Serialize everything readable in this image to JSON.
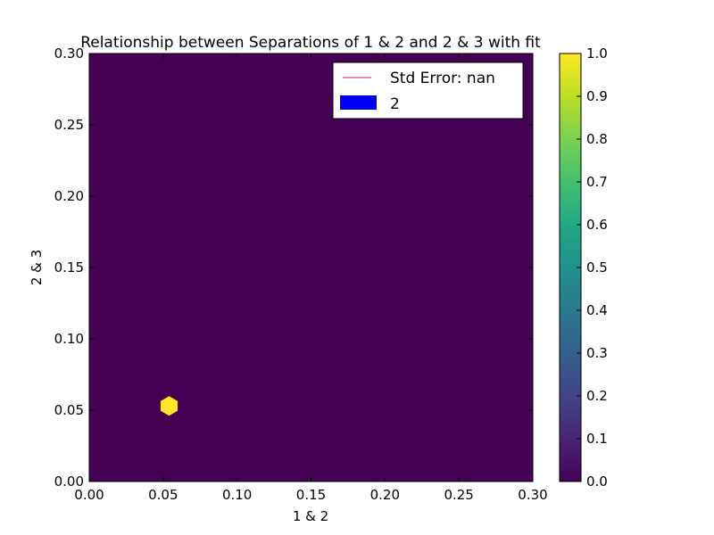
{
  "chart_data": {
    "type": "hexbin",
    "title": "Relationship between Separations of 1 & 2 and 2 & 3 with fit",
    "xlabel": "1 & 2",
    "ylabel": "2 & 3",
    "xlim": [
      0.0,
      0.3
    ],
    "ylim": [
      0.0,
      0.3
    ],
    "x_ticks": [
      "0.00",
      "0.05",
      "0.10",
      "0.15",
      "0.20",
      "0.25",
      "0.30"
    ],
    "y_ticks": [
      "0.00",
      "0.05",
      "0.10",
      "0.15",
      "0.20",
      "0.25",
      "0.30"
    ],
    "grid": false,
    "background_color": "#440154",
    "points": [
      {
        "x": 0.054,
        "y": 0.053,
        "value": 1.0
      }
    ],
    "hex_color": "#fde725",
    "legend": {
      "placement": "upper right",
      "entries": [
        {
          "label": "Std Error: nan",
          "type": "line",
          "color": "#e0457b"
        },
        {
          "label": "2",
          "type": "patch",
          "color": "#0000ff"
        }
      ]
    },
    "colorbar": {
      "range": [
        0.0,
        1.0
      ],
      "colormap": "viridis",
      "ticks": [
        "0.0",
        "0.1",
        "0.2",
        "0.3",
        "0.4",
        "0.5",
        "0.6",
        "0.7",
        "0.8",
        "0.9",
        "1.0"
      ]
    }
  }
}
